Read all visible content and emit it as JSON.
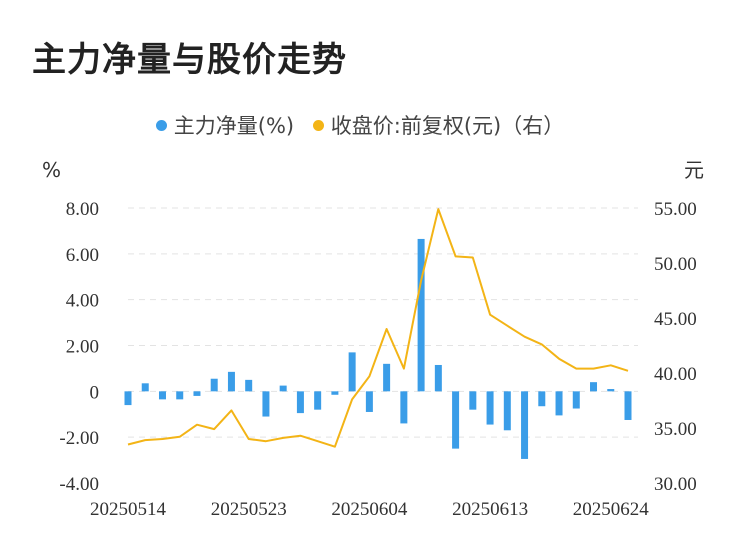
{
  "chart_data": {
    "type": "bar+line",
    "title": "主力净量与股价走势",
    "colors": {
      "bar": "#3a9de8",
      "line": "#f3b416",
      "grid": "#e3e3e3"
    },
    "legend": [
      {
        "name": "主力净量(%)",
        "color": "#3a9de8"
      },
      {
        "name": "收盘价:前复权(元)（右）",
        "color": "#f3b416"
      }
    ],
    "y_left": {
      "unit": "%",
      "min": -4,
      "max": 8,
      "ticks": [
        "8.00",
        "6.00",
        "4.00",
        "2.00",
        "0",
        "-2.00",
        "-4.00"
      ],
      "tick_values": [
        8,
        6,
        4,
        2,
        0,
        -2,
        -4
      ]
    },
    "y_right": {
      "unit": "元",
      "min": 30,
      "max": 55,
      "ticks": [
        "55.00",
        "50.00",
        "45.00",
        "40.00",
        "35.00",
        "30.00"
      ],
      "tick_values": [
        55,
        50,
        45,
        40,
        35,
        30
      ]
    },
    "x_labels": [
      {
        "index": 0,
        "label": "20250514"
      },
      {
        "index": 7,
        "label": "20250523"
      },
      {
        "index": 14,
        "label": "20250604"
      },
      {
        "index": 21,
        "label": "20250613"
      },
      {
        "index": 28,
        "label": "20250624"
      }
    ],
    "series": [
      {
        "name": "主力净量(%)",
        "type": "bar",
        "values": [
          -0.6,
          0.35,
          -0.35,
          -0.35,
          -0.2,
          0.55,
          0.85,
          0.5,
          -1.1,
          0.25,
          -0.95,
          -0.8,
          -0.15,
          1.7,
          -0.9,
          1.2,
          -1.4,
          6.65,
          1.15,
          -2.5,
          -0.8,
          -1.45,
          -1.7,
          -2.95,
          -0.65,
          -1.05,
          -0.75,
          0.4,
          0.1,
          -1.25
        ]
      },
      {
        "name": "收盘价:前复权(元)（右）",
        "type": "line",
        "values": [
          33.5,
          33.9,
          34.0,
          34.2,
          35.3,
          34.9,
          36.6,
          34.0,
          33.8,
          34.1,
          34.3,
          33.8,
          33.3,
          37.6,
          39.7,
          44.0,
          40.4,
          48.4,
          54.9,
          50.6,
          50.5,
          45.3,
          44.3,
          43.3,
          42.6,
          41.3,
          40.4,
          40.4,
          40.7,
          40.2
        ]
      }
    ]
  }
}
